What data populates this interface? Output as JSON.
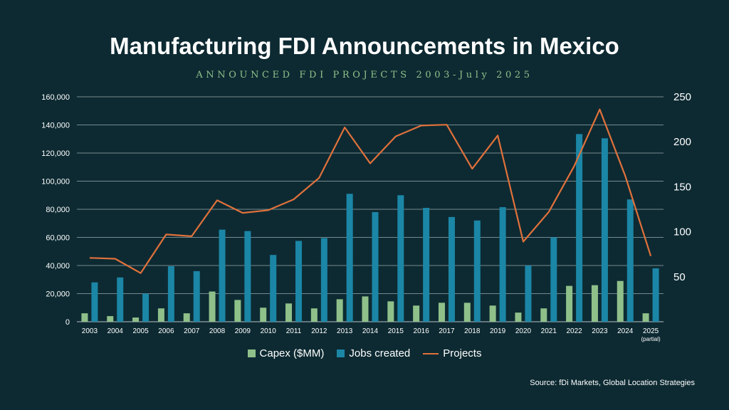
{
  "title": "Manufacturing FDI Announcements in Mexico",
  "subtitle": "ANNOUNCED FDI PROJECTS 2003-July 2025",
  "source": "Source: fDi Markets, Global Location Strategies",
  "colors": {
    "background": "#0d2a32",
    "capex": "#8fc08a",
    "jobs": "#1b86a6",
    "projects": "#e0713b",
    "grid": "#c9d3d6"
  },
  "chart_data": {
    "type": "bar",
    "categories": [
      "2003",
      "2004",
      "2005",
      "2006",
      "2007",
      "2008",
      "2009",
      "2010",
      "2011",
      "2012",
      "2013",
      "2014",
      "2015",
      "2016",
      "2017",
      "2018",
      "2019",
      "2020",
      "2021",
      "2022",
      "2023",
      "2024",
      "2025"
    ],
    "category_notes": {
      "2025": "(partial)"
    },
    "y_left": {
      "ylim": [
        0,
        160000
      ],
      "ticks": [
        0,
        20000,
        40000,
        60000,
        80000,
        100000,
        120000,
        140000,
        160000
      ],
      "tick_labels": [
        "0",
        "20,000",
        "40,000",
        "60,000",
        "80,000",
        "100,000",
        "120,000",
        "140,000",
        "160,000"
      ]
    },
    "y_right": {
      "ylim": [
        0,
        250
      ],
      "ticks": [
        50,
        100,
        150,
        200,
        250
      ],
      "tick_labels": [
        "50",
        "100",
        "150",
        "200",
        "250"
      ]
    },
    "grid": true,
    "legend_position": "bottom",
    "series": [
      {
        "name": "Capex ($MM)",
        "type": "bar",
        "axis": "left",
        "values": [
          6000,
          4000,
          3000,
          9500,
          6000,
          21500,
          15500,
          10000,
          13000,
          9500,
          16000,
          18000,
          14500,
          11500,
          13500,
          13500,
          11500,
          6500,
          9500,
          25500,
          26000,
          29000,
          6000
        ]
      },
      {
        "name": "Jobs created",
        "type": "bar",
        "axis": "left",
        "values": [
          28000,
          31500,
          20000,
          39500,
          36000,
          65500,
          64500,
          47500,
          57500,
          59500,
          91000,
          78000,
          90000,
          81000,
          74500,
          72000,
          81500,
          40000,
          60000,
          133500,
          130500,
          87000,
          38000
        ]
      },
      {
        "name": "Projects",
        "type": "line",
        "axis": "right",
        "values": [
          71,
          70,
          54,
          97,
          95,
          135,
          121,
          124,
          136,
          160,
          216,
          176,
          206,
          218,
          219,
          170,
          207,
          89,
          122,
          173,
          236,
          162,
          73
        ]
      }
    ]
  }
}
